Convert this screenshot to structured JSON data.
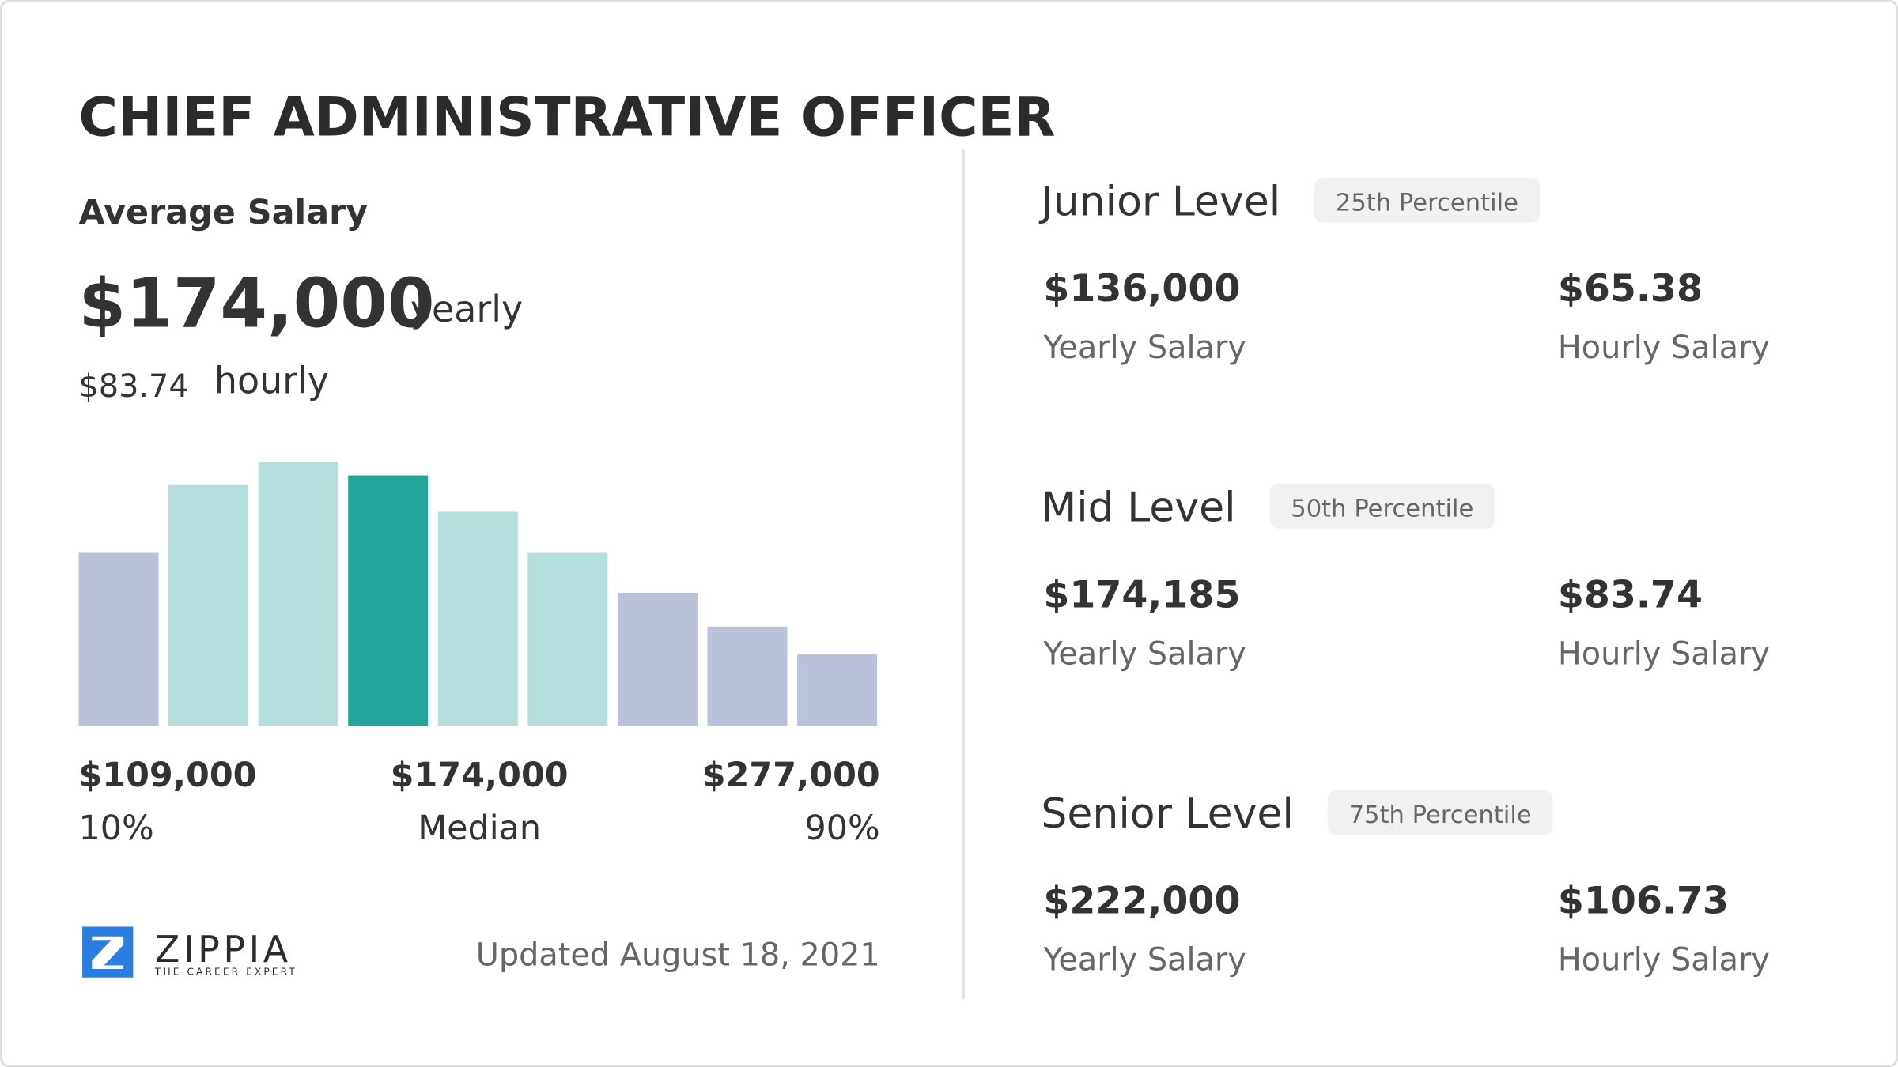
{
  "header": {
    "title": "CHIEF ADMINISTRATIVE OFFICER"
  },
  "average": {
    "label": "Average Salary",
    "yearly": "$174,000",
    "yearly_unit": "yearly",
    "hourly": "$83.74",
    "hourly_unit": "hourly"
  },
  "chart_data": {
    "type": "bar",
    "values": [
      143,
      199,
      218,
      207,
      177,
      143,
      110,
      82,
      59
    ],
    "colors": [
      "#b9c2d9",
      "#b5dfdc",
      "#b5dfdc",
      "#26a69a",
      "#b5dfdc",
      "#b5dfdc",
      "#b9c2d9",
      "#b9c2d9",
      "#b9c2d9"
    ]
  },
  "range": {
    "low": {
      "value": "$109,000",
      "label": "10%"
    },
    "median": {
      "value": "$174,000",
      "label": "Median"
    },
    "high": {
      "value": "$277,000",
      "label": "90%"
    }
  },
  "logo": {
    "name": "ZIPPIA",
    "tagline": "THE CAREER EXPERT"
  },
  "updated": "Updated August 18, 2021",
  "levels": [
    {
      "name": "Junior Level",
      "percentile": "25th Percentile",
      "yearly": "$136,000",
      "yearly_label": "Yearly Salary",
      "hourly": "$65.38",
      "hourly_label": "Hourly Salary"
    },
    {
      "name": "Mid Level",
      "percentile": "50th Percentile",
      "yearly": "$174,185",
      "yearly_label": "Yearly Salary",
      "hourly": "$83.74",
      "hourly_label": "Hourly Salary"
    },
    {
      "name": "Senior Level",
      "percentile": "75th Percentile",
      "yearly": "$222,000",
      "yearly_label": "Yearly Salary",
      "hourly": "$106.73",
      "hourly_label": "Hourly Salary"
    }
  ]
}
